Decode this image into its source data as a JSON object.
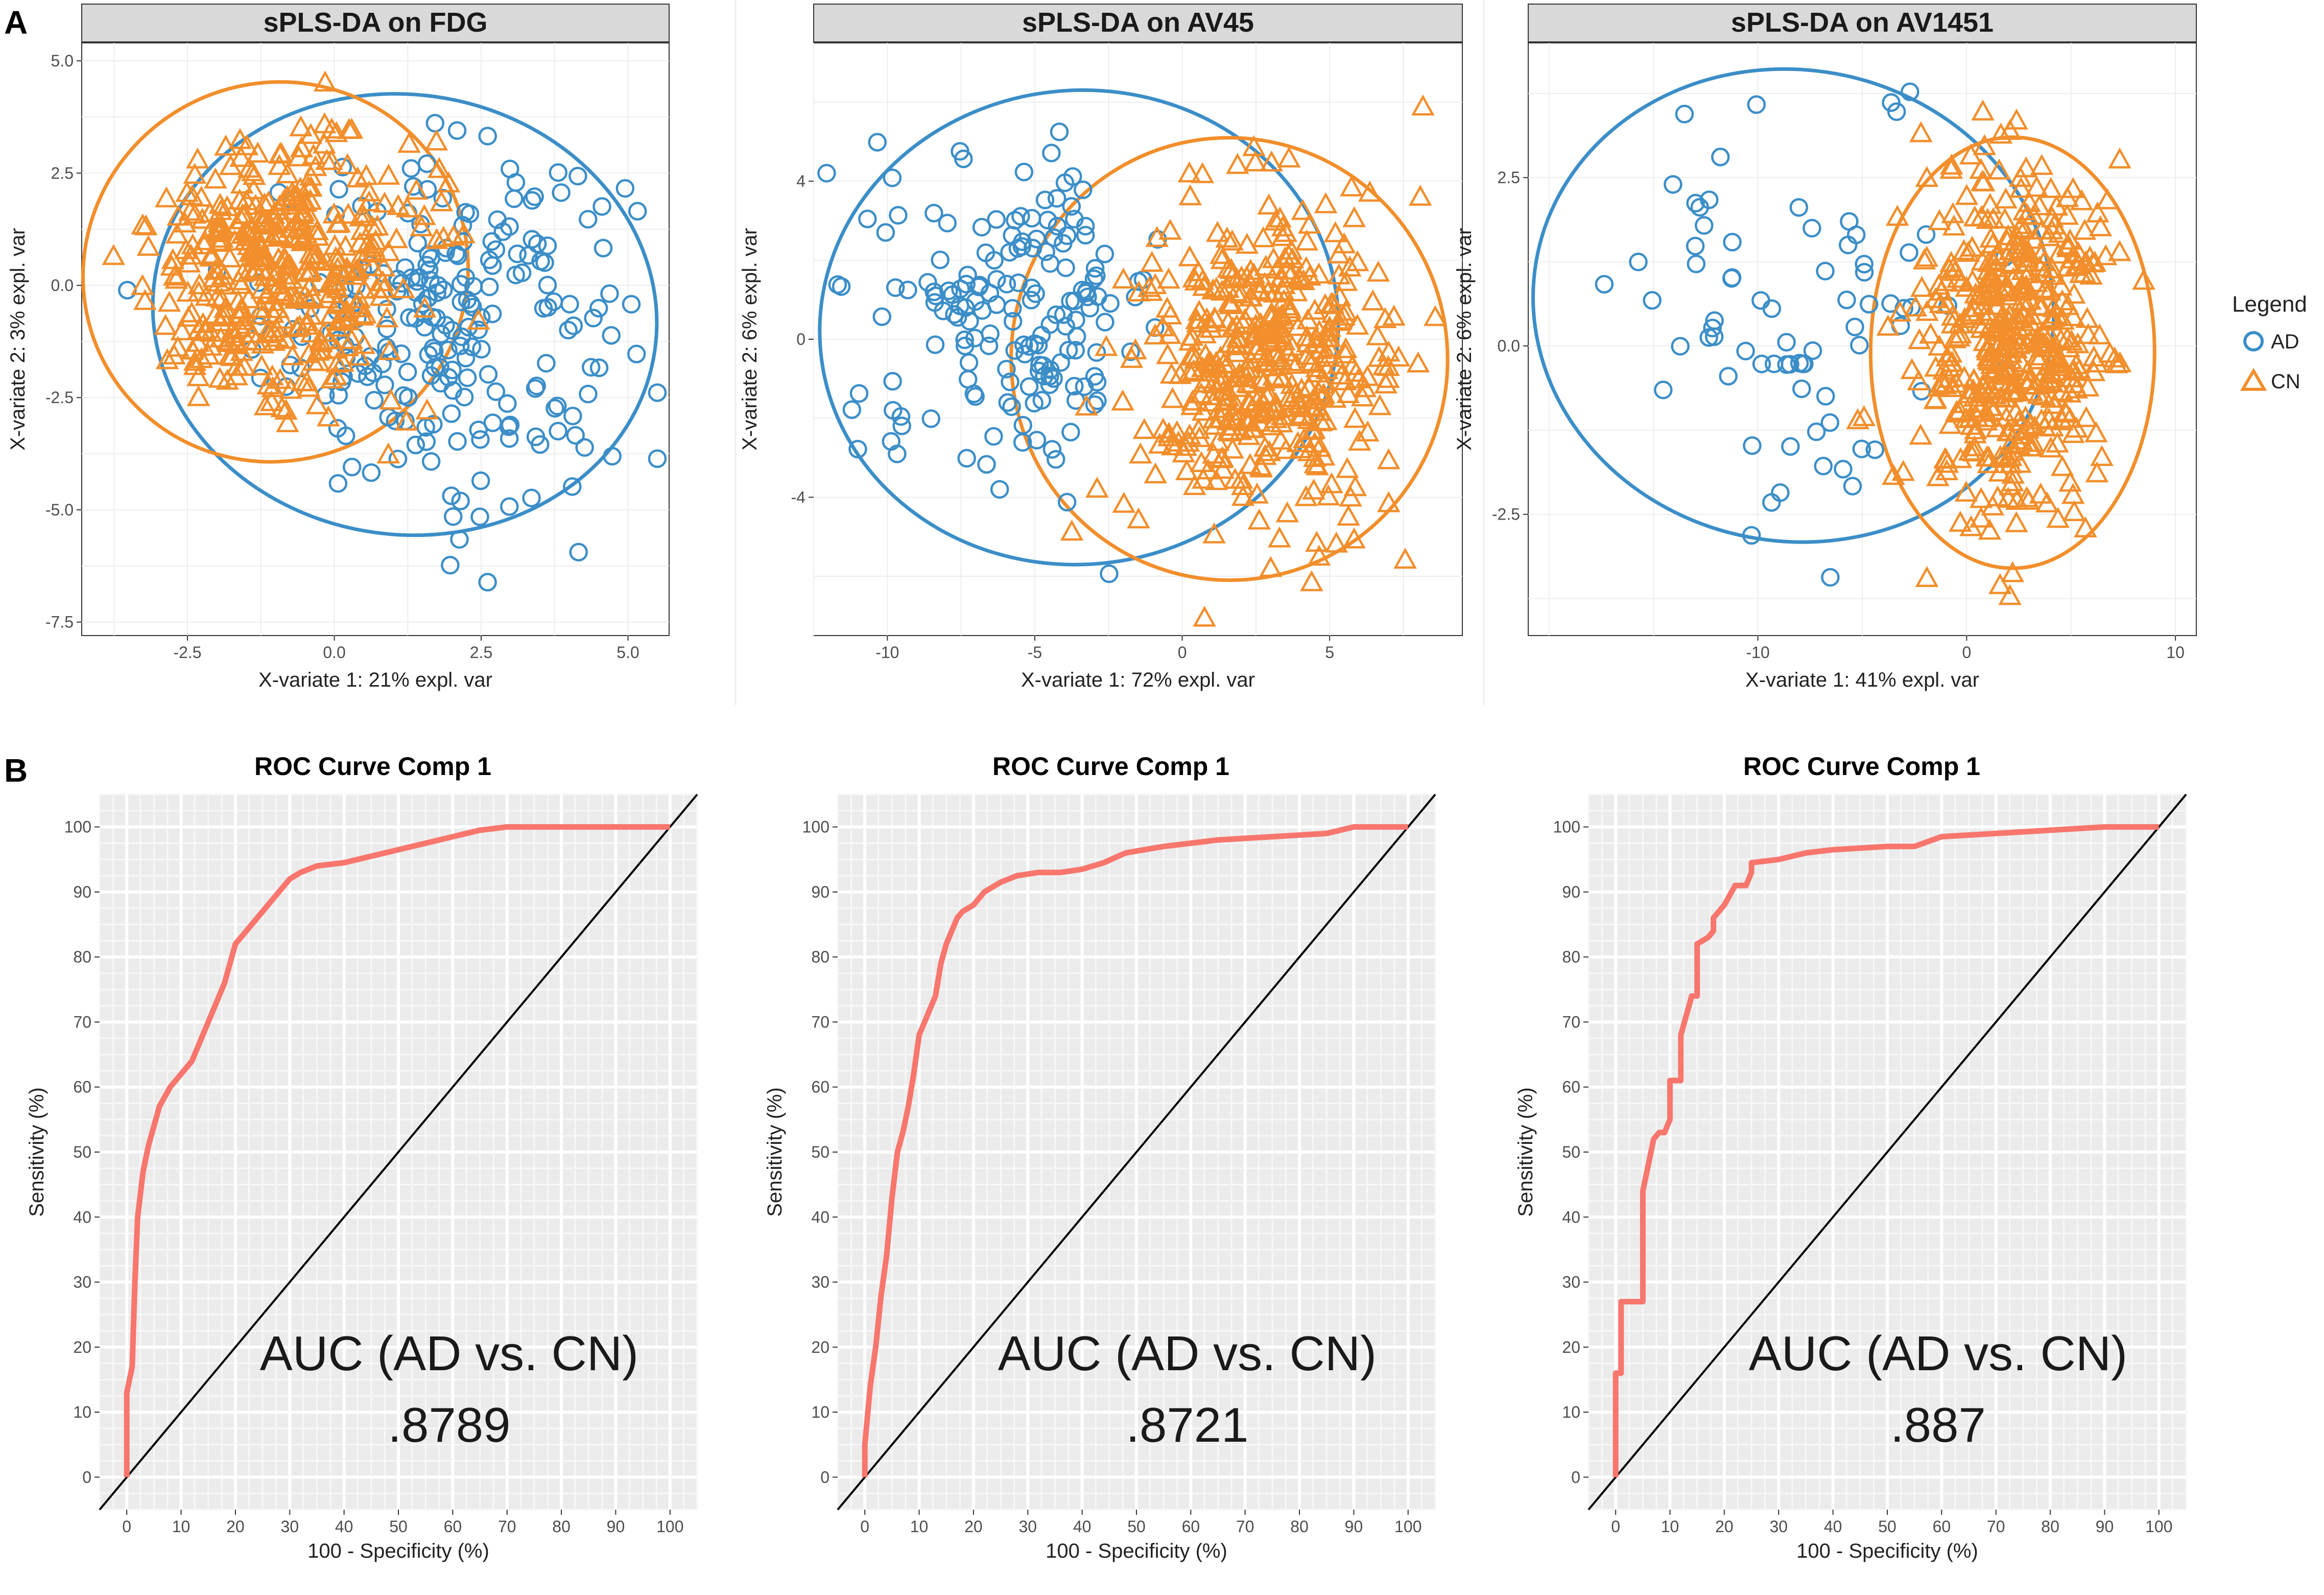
{
  "panels": {
    "A": "A",
    "B": "B"
  },
  "legend": {
    "title": "Legend",
    "items": [
      {
        "label": "AD",
        "shape": "circle",
        "color": "#3b8ec8"
      },
      {
        "label": "CN",
        "shape": "triangle",
        "color": "#f28e2b"
      }
    ]
  },
  "colors": {
    "AD": "#3b8ec8",
    "CN": "#f28e2b",
    "roc": "#f8766d",
    "strip": "#d9d9d9",
    "roc_bg": "#ebebeb"
  },
  "chart_data": [
    {
      "type": "scatter",
      "title": "sPLS-DA on FDG",
      "xlabel": "X-variate 1: 21% expl. var",
      "ylabel": "X-variate 2: 3% expl. var",
      "xlim": [
        -4.3,
        5.7
      ],
      "ylim": [
        -7.8,
        5.4
      ],
      "xticks": [
        -2.5,
        0.0,
        2.5,
        5.0
      ],
      "yticks": [
        -7.5,
        -5.0,
        -2.5,
        0.0,
        2.5,
        5.0
      ],
      "xtick_labels": [
        "-2.5",
        "0.0",
        "2.5",
        "5.0"
      ],
      "ytick_labels": [
        "-7.5",
        "-5.0",
        "-2.5",
        "0.0",
        "2.5",
        "5.0"
      ],
      "groups": [
        {
          "name": "AD",
          "n": 230,
          "center": [
            1.9,
            -0.8
          ],
          "spread": [
            1.55,
            1.9
          ],
          "ellipse": {
            "cx": 1.2,
            "cy": -0.65,
            "rx": 4.3,
            "ry": 4.9,
            "angle": -8
          }
        },
        {
          "name": "CN",
          "n": 420,
          "center": [
            -0.9,
            0.3
          ],
          "spread": [
            1.15,
            1.45
          ],
          "ellipse": {
            "cx": -1.0,
            "cy": 0.3,
            "rx": 3.3,
            "ry": 4.2,
            "angle": 30
          }
        }
      ]
    },
    {
      "type": "scatter",
      "title": "sPLS-DA on AV45",
      "xlabel": "X-variate 1: 72% expl. var",
      "ylabel": "X-variate 2: 6% expl. var",
      "xlim": [
        -12.5,
        9.5
      ],
      "ylim": [
        -7.5,
        7.5
      ],
      "xticks": [
        -10,
        -5,
        0,
        5
      ],
      "yticks": [
        -4,
        0,
        4
      ],
      "xtick_labels": [
        "-10",
        "-5",
        "0",
        "5"
      ],
      "ytick_labels": [
        "-4",
        "0",
        "4"
      ],
      "groups": [
        {
          "name": "AD",
          "n": 170,
          "center": [
            -5.6,
            0.8
          ],
          "spread": [
            2.5,
            1.9
          ],
          "ellipse": {
            "cx": -3.5,
            "cy": 0.3,
            "rx": 8.8,
            "ry": 6.0,
            "angle": 5
          }
        },
        {
          "name": "CN",
          "n": 440,
          "center": [
            2.6,
            -0.6
          ],
          "spread": [
            2.1,
            2.0
          ],
          "ellipse": {
            "cx": 1.6,
            "cy": -0.5,
            "rx": 7.4,
            "ry": 5.6,
            "angle": 5
          }
        }
      ]
    },
    {
      "type": "scatter",
      "title": "sPLS-DA on AV1451",
      "xlabel": "X-variate 1: 41% expl. var",
      "ylabel": "X-variate 2: 6% expl. var",
      "xlim": [
        -21,
        11
      ],
      "ylim": [
        -4.3,
        4.5
      ],
      "xticks": [
        -10,
        0,
        10
      ],
      "yticks": [
        -2.5,
        0.0,
        2.5
      ],
      "xtick_labels": [
        "-10",
        "0",
        "10"
      ],
      "ytick_labels": [
        "-2.5",
        "0.0",
        "2.5"
      ],
      "groups": [
        {
          "name": "AD",
          "n": 75,
          "center": [
            -7.5,
            0.5
          ],
          "spread": [
            4.2,
            1.6
          ],
          "ellipse": {
            "cx": -8.3,
            "cy": 0.6,
            "rx": 12.5,
            "ry": 3.5,
            "angle": -10
          }
        },
        {
          "name": "CN",
          "n": 480,
          "center": [
            2.3,
            0.1
          ],
          "spread": [
            2.2,
            1.3
          ],
          "ellipse": {
            "cx": 2.2,
            "cy": -0.1,
            "rx": 6.8,
            "ry": 3.2,
            "angle": 0
          }
        }
      ]
    },
    {
      "type": "line",
      "title": "ROC Curve Comp 1",
      "xlabel": "100 - Specificity (%)",
      "ylabel": "Sensitivity (%)",
      "xlim": [
        -5,
        105
      ],
      "ylim": [
        -5,
        105
      ],
      "xticks": [
        0,
        10,
        20,
        30,
        40,
        50,
        60,
        70,
        80,
        90,
        100
      ],
      "yticks": [
        0,
        10,
        20,
        30,
        40,
        50,
        60,
        70,
        80,
        90,
        100
      ],
      "tick_labels": [
        "0",
        "10",
        "20",
        "30",
        "40",
        "50",
        "60",
        "70",
        "80",
        "90",
        "100"
      ],
      "auc_label": "AUC (AD vs. CN)",
      "auc_value": ".8789",
      "x": [
        0,
        0,
        1,
        1.5,
        2,
        3,
        4,
        5,
        6,
        8,
        10,
        12,
        14,
        16,
        18,
        20,
        22,
        24,
        26,
        28,
        30,
        32,
        35,
        40,
        45,
        50,
        55,
        60,
        65,
        70,
        75,
        80,
        90,
        100
      ],
      "y": [
        0,
        13,
        17,
        30,
        40,
        47,
        51,
        54,
        57,
        60,
        62,
        64,
        68,
        72,
        76,
        82,
        84,
        86,
        88,
        90,
        92,
        93,
        94,
        94.5,
        95.5,
        96.5,
        97.5,
        98.5,
        99.5,
        100,
        100,
        100,
        100,
        100
      ]
    },
    {
      "type": "line",
      "title": "ROC Curve Comp 1",
      "xlabel": "100 - Specificity (%)",
      "ylabel": "Sensitivity (%)",
      "xlim": [
        -5,
        105
      ],
      "ylim": [
        -5,
        105
      ],
      "xticks": [
        0,
        10,
        20,
        30,
        40,
        50,
        60,
        70,
        80,
        90,
        100
      ],
      "yticks": [
        0,
        10,
        20,
        30,
        40,
        50,
        60,
        70,
        80,
        90,
        100
      ],
      "tick_labels": [
        "0",
        "10",
        "20",
        "30",
        "40",
        "50",
        "60",
        "70",
        "80",
        "90",
        "100"
      ],
      "auc_label": "AUC (AD vs. CN)",
      "auc_value": ".8721",
      "x": [
        0,
        0,
        1,
        2,
        3,
        4,
        5,
        6,
        7,
        8,
        9,
        10,
        11,
        12,
        13,
        14,
        15,
        16,
        17,
        18,
        20,
        22,
        25,
        28,
        32,
        36,
        40,
        44,
        48,
        55,
        60,
        65,
        75,
        85,
        90,
        95,
        100
      ],
      "y": [
        0,
        5,
        14,
        20,
        28,
        34,
        43,
        50,
        53,
        57,
        62,
        68,
        70,
        72,
        74,
        79,
        82,
        84,
        86,
        87,
        88,
        90,
        91.5,
        92.5,
        93,
        93,
        93.5,
        94.5,
        96,
        97,
        97.5,
        98,
        98.5,
        99,
        100,
        100,
        100
      ]
    },
    {
      "type": "line",
      "title": "ROC Curve Comp 1",
      "xlabel": "100 - Specificity (%)",
      "ylabel": "Sensitivity (%)",
      "xlim": [
        -5,
        105
      ],
      "ylim": [
        -5,
        105
      ],
      "xticks": [
        0,
        10,
        20,
        30,
        40,
        50,
        60,
        70,
        80,
        90,
        100
      ],
      "yticks": [
        0,
        10,
        20,
        30,
        40,
        50,
        60,
        70,
        80,
        90,
        100
      ],
      "tick_labels": [
        "0",
        "10",
        "20",
        "30",
        "40",
        "50",
        "60",
        "70",
        "80",
        "90",
        "100"
      ],
      "auc_label": "AUC (AD vs. CN)",
      "auc_value": ".887",
      "x": [
        0,
        0,
        1,
        1,
        3,
        3,
        5,
        5,
        6,
        7,
        8,
        9,
        10,
        10,
        12,
        12,
        14,
        15,
        15,
        17,
        18,
        18,
        20,
        22,
        24,
        25,
        25,
        30,
        35,
        40,
        50,
        55,
        60,
        70,
        80,
        90,
        100
      ],
      "y": [
        0,
        16,
        16,
        27,
        27,
        27,
        27,
        44,
        48,
        52,
        53,
        53,
        55,
        61,
        61,
        68,
        74,
        74,
        82,
        83,
        84,
        86,
        88,
        91,
        91,
        93,
        94.5,
        95,
        96,
        96.5,
        97,
        97,
        98.5,
        99,
        99.5,
        100,
        100
      ]
    }
  ]
}
